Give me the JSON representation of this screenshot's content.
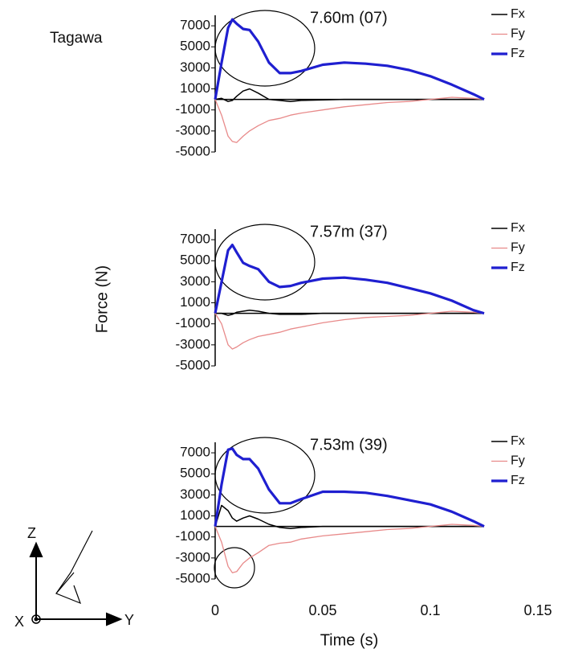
{
  "chart_data": [
    {
      "type": "line",
      "label": "Tagawa",
      "annotation": "7.60m (07)",
      "xlim": [
        0,
        0.15
      ],
      "ylim": [
        -5000,
        8000
      ],
      "yticks": [
        7000,
        5000,
        3000,
        1000,
        -1000,
        -3000,
        -5000
      ],
      "x": [
        0,
        0.003,
        0.006,
        0.008,
        0.01,
        0.013,
        0.016,
        0.02,
        0.025,
        0.03,
        0.035,
        0.04,
        0.05,
        0.06,
        0.07,
        0.08,
        0.09,
        0.1,
        0.11,
        0.12,
        0.125
      ],
      "series": [
        {
          "name": "Fx",
          "color": "#000000",
          "values": [
            0,
            100,
            -200,
            -100,
            300,
            800,
            1000,
            600,
            0,
            -100,
            -200,
            -100,
            -50,
            0,
            0,
            0,
            0,
            0,
            0,
            0,
            0
          ]
        },
        {
          "name": "Fy",
          "color": "#e88a8a",
          "values": [
            0,
            -1500,
            -3500,
            -4000,
            -4100,
            -3500,
            -3000,
            -2500,
            -2000,
            -1800,
            -1500,
            -1300,
            -1000,
            -700,
            -500,
            -300,
            -200,
            0,
            200,
            100,
            0
          ]
        },
        {
          "name": "Fz",
          "color": "#1f1fd0",
          "values": [
            0,
            3500,
            6800,
            7600,
            7200,
            6700,
            6600,
            5500,
            3500,
            2500,
            2500,
            2700,
            3300,
            3500,
            3400,
            3200,
            2800,
            2200,
            1400,
            500,
            0
          ]
        }
      ]
    },
    {
      "type": "line",
      "ylabel": "Force (N)",
      "annotation": "7.57m (37)",
      "xlim": [
        0,
        0.15
      ],
      "ylim": [
        -5000,
        8000
      ],
      "yticks": [
        7000,
        5000,
        3000,
        1000,
        -1000,
        -3000,
        -5000
      ],
      "x": [
        0,
        0.003,
        0.006,
        0.008,
        0.01,
        0.013,
        0.016,
        0.02,
        0.025,
        0.03,
        0.035,
        0.04,
        0.05,
        0.06,
        0.07,
        0.08,
        0.09,
        0.1,
        0.11,
        0.12,
        0.125
      ],
      "series": [
        {
          "name": "Fx",
          "color": "#000000",
          "values": [
            0,
            0,
            -200,
            -100,
            100,
            200,
            300,
            200,
            0,
            -100,
            -100,
            -100,
            0,
            0,
            0,
            0,
            0,
            0,
            0,
            0,
            0
          ]
        },
        {
          "name": "Fy",
          "color": "#e88a8a",
          "values": [
            0,
            -1000,
            -3000,
            -3400,
            -3200,
            -2800,
            -2500,
            -2200,
            -2000,
            -1800,
            -1500,
            -1300,
            -900,
            -600,
            -400,
            -300,
            -200,
            0,
            200,
            100,
            0
          ]
        },
        {
          "name": "Fz",
          "color": "#1f1fd0",
          "values": [
            0,
            3000,
            6000,
            6500,
            5800,
            4800,
            4500,
            4200,
            3000,
            2500,
            2600,
            2900,
            3300,
            3400,
            3200,
            2900,
            2400,
            1900,
            1200,
            300,
            0
          ]
        }
      ]
    },
    {
      "type": "line",
      "annotation": "7.53m (39)",
      "xlabel": "Time (s)",
      "xlim": [
        0,
        0.15
      ],
      "xticks": [
        0,
        0.05,
        0.1,
        0.15
      ],
      "ylim": [
        -5000,
        8000
      ],
      "yticks": [
        7000,
        5000,
        3000,
        1000,
        -1000,
        -3000,
        -5000
      ],
      "x": [
        0,
        0.003,
        0.006,
        0.008,
        0.01,
        0.013,
        0.016,
        0.02,
        0.025,
        0.03,
        0.035,
        0.04,
        0.05,
        0.06,
        0.07,
        0.08,
        0.09,
        0.1,
        0.11,
        0.12,
        0.125
      ],
      "series": [
        {
          "name": "Fx",
          "color": "#000000",
          "values": [
            0,
            2000,
            1500,
            800,
            500,
            800,
            1000,
            700,
            200,
            -100,
            -200,
            -100,
            0,
            0,
            0,
            0,
            0,
            0,
            0,
            0,
            0
          ]
        },
        {
          "name": "Fy",
          "color": "#e88a8a",
          "values": [
            0,
            -1500,
            -3800,
            -4400,
            -4300,
            -3500,
            -3000,
            -2500,
            -1800,
            -1600,
            -1500,
            -1200,
            -900,
            -700,
            -500,
            -300,
            -200,
            0,
            200,
            100,
            0
          ]
        },
        {
          "name": "Fz",
          "color": "#1f1fd0",
          "values": [
            0,
            4000,
            7300,
            7400,
            6800,
            6400,
            6400,
            5500,
            3500,
            2200,
            2200,
            2600,
            3300,
            3300,
            3200,
            2900,
            2500,
            2100,
            1400,
            500,
            0
          ]
        }
      ]
    }
  ]
}
